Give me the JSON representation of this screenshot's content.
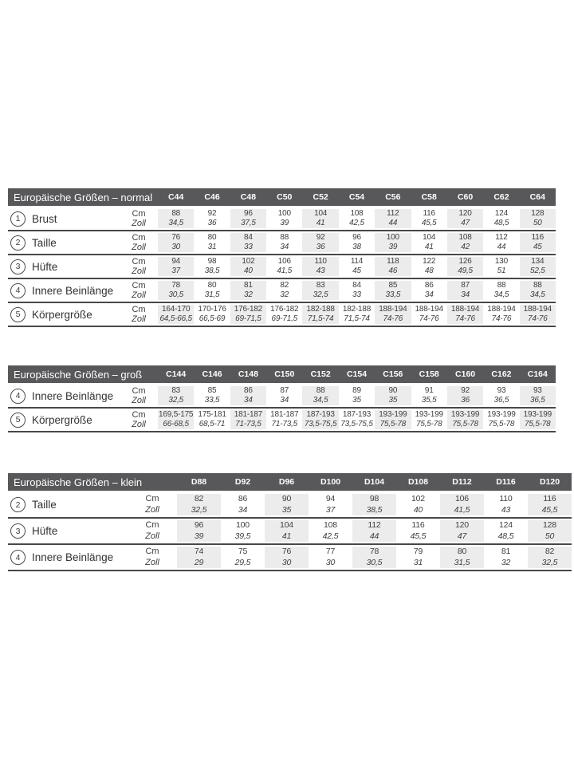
{
  "units": {
    "cm": "Cm",
    "zoll": "Zoll"
  },
  "colors": {
    "header_bar": "#58585a",
    "header_text": "#ffffff",
    "column_shade": "#ececec",
    "row_line": "#48484a",
    "text": "#3e3e40"
  },
  "tables": [
    {
      "id": "normal",
      "title": "Europäische Größen – normal",
      "columns": [
        "C44",
        "C46",
        "C48",
        "C50",
        "C52",
        "C54",
        "C56",
        "C58",
        "C60",
        "C62",
        "C64"
      ],
      "rows": [
        {
          "num": "1",
          "label": "Brust",
          "cm": [
            "88",
            "92",
            "96",
            "100",
            "104",
            "108",
            "112",
            "116",
            "120",
            "124",
            "128"
          ],
          "zoll": [
            "34,5",
            "36",
            "37,5",
            "39",
            "41",
            "42,5",
            "44",
            "45,5",
            "47",
            "48,5",
            "50"
          ]
        },
        {
          "num": "2",
          "label": "Taille",
          "cm": [
            "76",
            "80",
            "84",
            "88",
            "92",
            "96",
            "100",
            "104",
            "108",
            "112",
            "116"
          ],
          "zoll": [
            "30",
            "31",
            "33",
            "34",
            "36",
            "38",
            "39",
            "41",
            "42",
            "44",
            "45"
          ]
        },
        {
          "num": "3",
          "label": "Hüfte",
          "cm": [
            "94",
            "98",
            "102",
            "106",
            "110",
            "114",
            "118",
            "122",
            "126",
            "130",
            "134"
          ],
          "zoll": [
            "37",
            "38,5",
            "40",
            "41,5",
            "43",
            "45",
            "46",
            "48",
            "49,5",
            "51",
            "52,5"
          ]
        },
        {
          "num": "4",
          "label": "Innere Beinlänge",
          "cm": [
            "78",
            "80",
            "81",
            "82",
            "83",
            "84",
            "85",
            "86",
            "87",
            "88",
            "88"
          ],
          "zoll": [
            "30,5",
            "31,5",
            "32",
            "32",
            "32,5",
            "33",
            "33,5",
            "34",
            "34",
            "34,5",
            "34,5"
          ]
        },
        {
          "num": "5",
          "label": "Körpergröße",
          "cm": [
            "164-170",
            "170-176",
            "176-182",
            "176-182",
            "182-188",
            "182-188",
            "188-194",
            "188-194",
            "188-194",
            "188-194",
            "188-194"
          ],
          "zoll": [
            "64,5-66,5",
            "66,5-69",
            "69-71,5",
            "69-71,5",
            "71,5-74",
            "71,5-74",
            "74-76",
            "74-76",
            "74-76",
            "74-76",
            "74-76"
          ]
        }
      ]
    },
    {
      "id": "gross",
      "title": "Europäische Größen – groß",
      "columns": [
        "C144",
        "C146",
        "C148",
        "C150",
        "C152",
        "C154",
        "C156",
        "C158",
        "C160",
        "C162",
        "C164"
      ],
      "rows": [
        {
          "num": "4",
          "label": "Innere Beinlänge",
          "cm": [
            "83",
            "85",
            "86",
            "87",
            "88",
            "89",
            "90",
            "91",
            "92",
            "93",
            "93"
          ],
          "zoll": [
            "32,5",
            "33,5",
            "34",
            "34",
            "34,5",
            "35",
            "35",
            "35,5",
            "36",
            "36,5",
            "36,5"
          ]
        },
        {
          "num": "5",
          "label": "Körpergröße",
          "cm": [
            "169,5-175",
            "175-181",
            "181-187",
            "181-187",
            "187-193",
            "187-193",
            "193-199",
            "193-199",
            "193-199",
            "193-199",
            "193-199"
          ],
          "zoll": [
            "66-68,5",
            "68,5-71",
            "71-73,5",
            "71-73,5",
            "73,5-75,5",
            "73,5-75,5",
            "75,5-78",
            "75,5-78",
            "75,5-78",
            "75,5-78",
            "75,5-78"
          ]
        }
      ]
    },
    {
      "id": "klein",
      "title": "Europäische Größen – klein",
      "columns": [
        "D88",
        "D92",
        "D96",
        "D100",
        "D104",
        "D108",
        "D112",
        "D116",
        "D120"
      ],
      "rows": [
        {
          "num": "2",
          "label": "Taille",
          "cm": [
            "82",
            "86",
            "90",
            "94",
            "98",
            "102",
            "106",
            "110",
            "116"
          ],
          "zoll": [
            "32,5",
            "34",
            "35",
            "37",
            "38,5",
            "40",
            "41,5",
            "43",
            "45,5"
          ]
        },
        {
          "num": "3",
          "label": "Hüfte",
          "cm": [
            "96",
            "100",
            "104",
            "108",
            "112",
            "116",
            "120",
            "124",
            "128"
          ],
          "zoll": [
            "39",
            "39,5",
            "41",
            "42,5",
            "44",
            "45,5",
            "47",
            "48,5",
            "50"
          ]
        },
        {
          "num": "4",
          "label": "Innere Beinlänge",
          "cm": [
            "74",
            "75",
            "76",
            "77",
            "78",
            "79",
            "80",
            "81",
            "82"
          ],
          "zoll": [
            "29",
            "29,5",
            "30",
            "30",
            "30,5",
            "31",
            "31,5",
            "32",
            "32,5"
          ]
        }
      ]
    }
  ]
}
